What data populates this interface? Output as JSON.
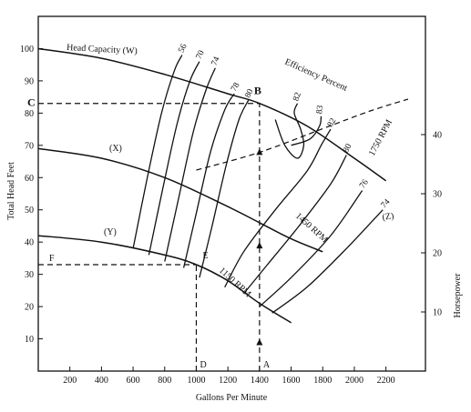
{
  "chart_data": {
    "type": "line",
    "xlabel": "Gallons Per Minute",
    "ylabel": "Total Head Feet",
    "y2label": "Horsepower",
    "xlim": [
      0,
      2450
    ],
    "ylim": [
      0,
      110
    ],
    "y2lim": [
      0,
      60
    ],
    "x_ticks": [
      200,
      400,
      600,
      800,
      1000,
      1200,
      1400,
      1600,
      1800,
      2000,
      2200
    ],
    "y_ticks": [
      10,
      20,
      30,
      40,
      50,
      60,
      70,
      80,
      90,
      100
    ],
    "y2_ticks": [
      10,
      20,
      30,
      40
    ],
    "head_capacity_curves": [
      {
        "name": "Head Capacity (W)",
        "x": [
          0,
          400,
          800,
          1200,
          1400,
          1700,
          2000,
          2200
        ],
        "y": [
          100,
          97,
          92,
          86,
          83,
          76,
          66,
          59
        ]
      },
      {
        "name": "(X)",
        "x": [
          0,
          400,
          800,
          1200,
          1400,
          1600,
          1800
        ],
        "y": [
          69,
          66,
          60,
          51,
          46,
          41,
          37
        ]
      },
      {
        "name": "(Y)",
        "x": [
          0,
          400,
          800,
          1000,
          1200,
          1400,
          1600
        ],
        "y": [
          42,
          40,
          36,
          33,
          28,
          21,
          15
        ]
      }
    ],
    "horsepower_curve": {
      "name": "(Z)",
      "x": [
        1000,
        1400,
        1800,
        2100,
        2340
      ],
      "y": [
        34,
        37,
        41,
        44,
        46
      ]
    },
    "efficiency_contours": [
      {
        "label": "56",
        "x": [
          600,
          690,
          780,
          860,
          910
        ],
        "y": [
          38,
          60,
          80,
          93,
          98
        ]
      },
      {
        "label": "70",
        "x": [
          700,
          790,
          880,
          960,
          1020
        ],
        "y": [
          36,
          57,
          77,
          90,
          96
        ]
      },
      {
        "label": "74",
        "x": [
          800,
          890,
          980,
          1060,
          1120
        ],
        "y": [
          34,
          54,
          74,
          87,
          94
        ]
      },
      {
        "label": "78",
        "x": [
          920,
          1000,
          1090,
          1180,
          1240
        ],
        "y": [
          32,
          49,
          68,
          81,
          86
        ]
      },
      {
        "label": "80",
        "x": [
          1020,
          1100,
          1190,
          1270,
          1330
        ],
        "y": [
          29,
          45,
          64,
          78,
          84
        ]
      },
      {
        "label": "82",
        "x": [
          1500,
          1560,
          1640,
          1680,
          1660,
          1620,
          1640
        ],
        "y": [
          78,
          70,
          66,
          70,
          75,
          80,
          83
        ]
      },
      {
        "label": "83",
        "x": [
          1600,
          1720,
          1780,
          1790
        ],
        "y": [
          70,
          72,
          76,
          79
        ]
      },
      {
        "label": "82",
        "x": [
          1180,
          1300,
          1500,
          1700,
          1790,
          1850
        ],
        "y": [
          26,
          37,
          50,
          62,
          70,
          75
        ]
      },
      {
        "label": "80",
        "x": [
          1300,
          1450,
          1650,
          1850,
          1950
        ],
        "y": [
          24,
          33,
          45,
          58,
          67
        ]
      },
      {
        "label": "76",
        "x": [
          1400,
          1600,
          1850,
          2050
        ],
        "y": [
          20,
          29,
          42,
          56
        ]
      },
      {
        "label": "74",
        "x": [
          1480,
          1700,
          1950,
          2180
        ],
        "y": [
          18,
          26,
          38,
          50
        ]
      }
    ],
    "speed_labels": [
      "1750 RPM",
      "1450 RPM",
      "1150 RPM"
    ],
    "series_title": "Efficiency Percent",
    "points": {
      "A": {
        "x": 1400,
        "y": 0
      },
      "B": {
        "x": 1400,
        "y": 83
      },
      "C": {
        "x": 0,
        "y": 83
      },
      "D": {
        "x": 1000,
        "y": 0
      },
      "E": {
        "x": 1000,
        "y": 33
      },
      "F": {
        "x": 0,
        "y": 33
      }
    }
  }
}
